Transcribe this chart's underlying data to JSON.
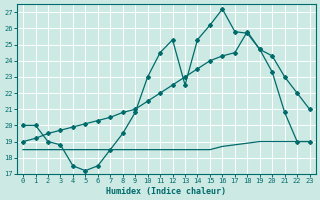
{
  "xlabel": "Humidex (Indice chaleur)",
  "background_color": "#cce9e4",
  "grid_color": "#ffffff",
  "line_color": "#006b6b",
  "xlim": [
    -0.5,
    23.5
  ],
  "ylim": [
    17,
    27.5
  ],
  "yticks": [
    17,
    18,
    19,
    20,
    21,
    22,
    23,
    24,
    25,
    26,
    27
  ],
  "xticks": [
    0,
    1,
    2,
    3,
    4,
    5,
    6,
    7,
    8,
    9,
    10,
    11,
    12,
    13,
    14,
    15,
    16,
    17,
    18,
    19,
    20,
    21,
    22,
    23
  ],
  "line1_x": [
    0,
    1,
    2,
    3,
    4,
    5,
    6,
    7,
    8,
    9,
    10,
    11,
    12,
    13,
    14,
    15,
    16,
    17,
    18,
    19,
    20,
    21,
    22,
    23
  ],
  "line1_y": [
    20.0,
    20.0,
    19.0,
    18.8,
    17.5,
    17.2,
    17.5,
    18.5,
    19.5,
    20.8,
    23.0,
    24.5,
    25.3,
    22.5,
    25.3,
    26.2,
    27.2,
    25.8,
    25.7,
    24.7,
    23.3,
    20.8,
    19.0,
    19.0
  ],
  "line2_x": [
    0,
    1,
    2,
    3,
    4,
    5,
    6,
    7,
    8,
    9,
    10,
    11,
    12,
    13,
    14,
    15,
    16,
    17,
    18,
    19,
    20,
    21,
    22,
    23
  ],
  "line2_y": [
    19.0,
    19.2,
    19.5,
    19.7,
    19.9,
    20.1,
    20.3,
    20.5,
    20.8,
    21.0,
    21.5,
    22.0,
    22.5,
    23.0,
    23.5,
    24.0,
    24.3,
    24.5,
    25.8,
    24.7,
    24.3,
    23.0,
    22.0,
    21.0
  ],
  "line3_x": [
    0,
    1,
    2,
    3,
    4,
    5,
    6,
    7,
    8,
    9,
    10,
    11,
    12,
    13,
    14,
    15,
    16,
    17,
    18,
    19,
    20,
    21,
    22,
    23
  ],
  "line3_y": [
    18.5,
    18.5,
    18.5,
    18.5,
    18.5,
    18.5,
    18.5,
    18.5,
    18.5,
    18.5,
    18.5,
    18.5,
    18.5,
    18.5,
    18.5,
    18.5,
    18.7,
    18.8,
    18.9,
    19.0,
    19.0,
    19.0,
    19.0,
    19.0
  ]
}
